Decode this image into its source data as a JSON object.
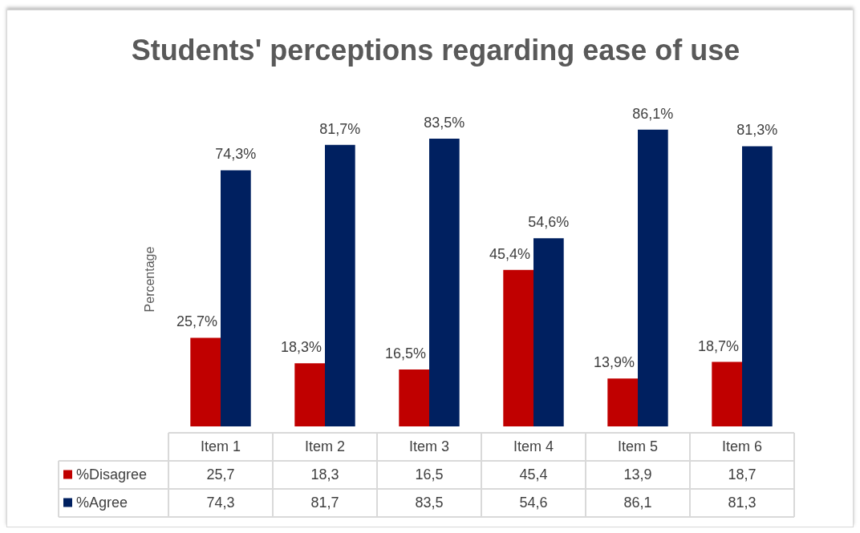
{
  "chart_data": {
    "type": "bar",
    "title": "Students' perceptions regarding ease of use",
    "ylabel": "Percentage",
    "categories": [
      "Item 1",
      "Item 2",
      "Item 3",
      "Item 4",
      "Item 5",
      "Item 6"
    ],
    "series": [
      {
        "name": "%Disagree",
        "color": "#c00000",
        "values": [
          25.7,
          18.3,
          16.5,
          45.4,
          13.9,
          18.7
        ],
        "value_labels": [
          "25,7%",
          "18,3%",
          "16,5%",
          "45,4%",
          "13,9%",
          "18,7%"
        ]
      },
      {
        "name": "%Agree",
        "color": "#002060",
        "values": [
          74.3,
          81.7,
          83.5,
          54.6,
          86.1,
          81.3
        ],
        "value_labels": [
          "74,3%",
          "81,7%",
          "83,5%",
          "54,6%",
          "86,1%",
          "81,3%"
        ]
      }
    ],
    "annotations": [
      "25,7",
      "18,3",
      "16,5",
      "45,4",
      "13,9",
      "18,7",
      "74,3",
      "81,7",
      "83,5",
      "54,6",
      "86,1",
      "81,3"
    ],
    "legend": "bottom"
  }
}
